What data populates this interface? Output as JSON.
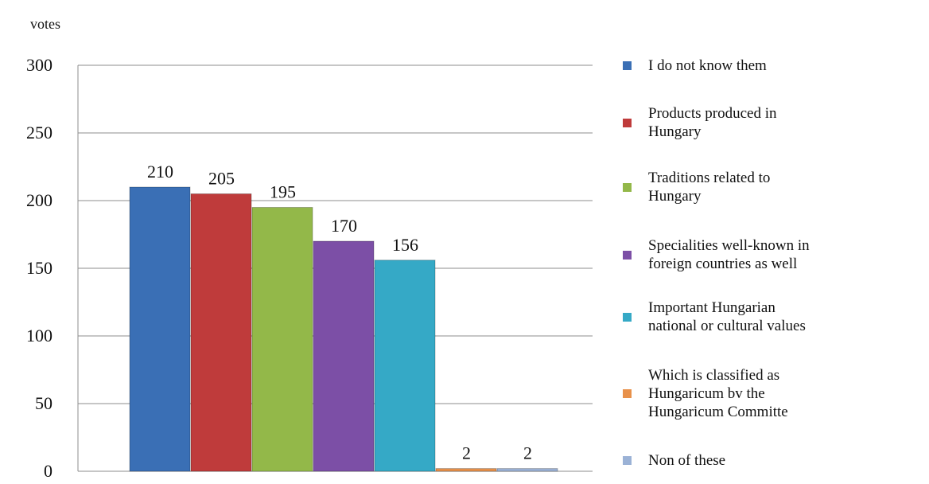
{
  "chart_data": {
    "type": "bar",
    "ylabel": "votes",
    "ylim": [
      0,
      300
    ],
    "yticks": [
      0,
      50,
      100,
      150,
      200,
      250,
      300
    ],
    "grid": true,
    "legend_position": "right",
    "series": [
      {
        "name": "I do not know them",
        "value": 210,
        "label": "210",
        "color": "#3a6fb5"
      },
      {
        "name": "Products produced in\nHungary",
        "value": 205,
        "label": "205",
        "color": "#bf3b3b"
      },
      {
        "name": "Traditions related to\nHungary",
        "value": 195,
        "label": "195",
        "color": "#93b849"
      },
      {
        "name": "Specialities well-known in\nforeign countries as well",
        "value": 170,
        "label": "170",
        "color": "#7c4fa6"
      },
      {
        "name": "Important Hungarian\nnational or cultural values",
        "value": 156,
        "label": "156",
        "color": "#35a9c6"
      },
      {
        "name": "Which is classified as\nHungaricum bv the\nHungaricum Committe",
        "value": 2,
        "label": "2",
        "color": "#e8914a"
      },
      {
        "name": "Non of these",
        "value": 2,
        "label": "2",
        "color": "#9bb2d6"
      }
    ]
  }
}
